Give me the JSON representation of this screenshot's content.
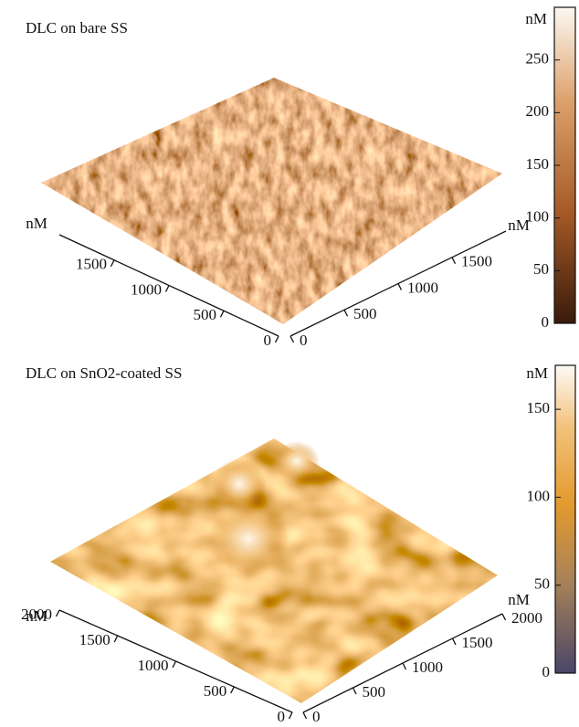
{
  "panels": [
    {
      "title": "DLC on bare SS",
      "colorbar": {
        "unit": "nM",
        "range": [
          0,
          300
        ],
        "ticks": [
          0,
          50,
          100,
          150,
          200,
          250
        ]
      },
      "left_axis": {
        "unit": "nM",
        "range": [
          0,
          2000
        ],
        "ticks": [
          0,
          500,
          1000,
          1500
        ]
      },
      "right_axis": {
        "unit": "nM",
        "range": [
          0,
          2000
        ],
        "ticks": [
          0,
          500,
          1000,
          1500
        ]
      }
    },
    {
      "title": "DLC on SnO2-coated SS",
      "colorbar": {
        "unit": "nM",
        "range": [
          0,
          175
        ],
        "ticks": [
          0,
          50,
          100,
          150
        ]
      },
      "left_axis": {
        "unit": "nM",
        "range": [
          0,
          2000
        ],
        "ticks": [
          0,
          500,
          1000,
          1500,
          2000
        ]
      },
      "right_axis": {
        "unit": "nM",
        "range": [
          0,
          2000
        ],
        "ticks": [
          0,
          500,
          1000,
          1500,
          2000
        ]
      }
    }
  ]
}
